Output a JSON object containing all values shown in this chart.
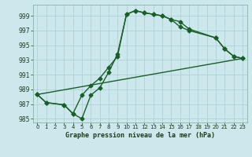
{
  "title": "Graphe pression niveau de la mer (hPa)",
  "background_color": "#cde8ec",
  "grid_color": "#b0d0d8",
  "line_color": "#1a5e2a",
  "xlim": [
    -0.5,
    23.5
  ],
  "ylim": [
    984.5,
    1000.5
  ],
  "yticks": [
    985,
    987,
    989,
    991,
    993,
    995,
    997,
    999
  ],
  "xticks": [
    0,
    1,
    2,
    3,
    4,
    5,
    6,
    7,
    8,
    9,
    10,
    11,
    12,
    13,
    14,
    15,
    16,
    17,
    18,
    19,
    20,
    21,
    22,
    23
  ],
  "series1_x": [
    0,
    1,
    3,
    4,
    5,
    6,
    7,
    8,
    9,
    10,
    11,
    12,
    13,
    14,
    15,
    16,
    17,
    20,
    21,
    22,
    23
  ],
  "series1_y": [
    988.3,
    987.2,
    986.9,
    985.7,
    985.0,
    988.2,
    989.2,
    991.3,
    993.8,
    999.2,
    999.7,
    999.4,
    999.2,
    999.0,
    998.5,
    998.2,
    997.2,
    996.0,
    994.5,
    993.5,
    993.2
  ],
  "series2_x": [
    0,
    1,
    3,
    4,
    5,
    6,
    7,
    8,
    9,
    10,
    11,
    12,
    13,
    14,
    15,
    16,
    17,
    20,
    21,
    22,
    23
  ],
  "series2_y": [
    988.3,
    987.2,
    986.9,
    985.7,
    988.2,
    989.5,
    990.5,
    992.0,
    993.5,
    999.2,
    999.7,
    999.4,
    999.2,
    999.0,
    998.5,
    997.5,
    997.0,
    996.0,
    994.5,
    993.5,
    993.2
  ],
  "series3_x": [
    0,
    23
  ],
  "series3_y": [
    988.3,
    993.2
  ],
  "font_color": "#1a3a1a",
  "markersize": 2.5,
  "linewidth": 1.0
}
